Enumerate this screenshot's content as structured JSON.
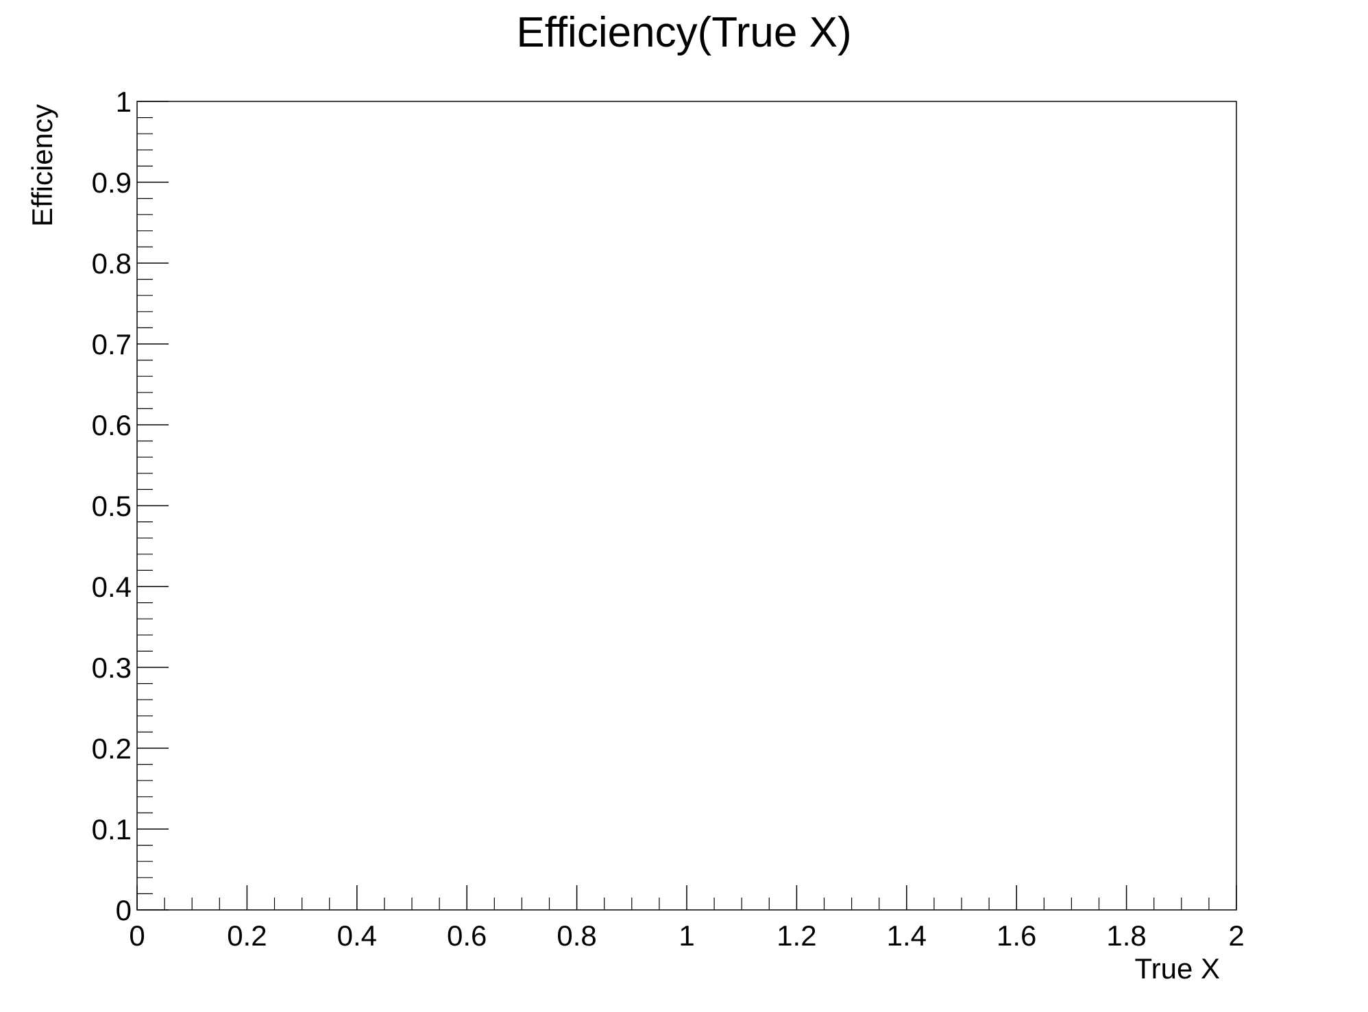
{
  "chart_data": {
    "type": "scatter",
    "title": "Efficiency(True X)",
    "xlabel": "True X",
    "ylabel": "Efficiency",
    "xlim": [
      0,
      2
    ],
    "ylim": [
      0,
      1
    ],
    "x_ticks": [
      0,
      0.2,
      0.4,
      0.6,
      0.8,
      1,
      1.2,
      1.4,
      1.6,
      1.8,
      2
    ],
    "x_tick_labels": [
      "0",
      "0.2",
      "0.4",
      "0.6",
      "0.8",
      "1",
      "1.2",
      "1.4",
      "1.6",
      "1.8",
      "2"
    ],
    "y_ticks": [
      0,
      0.1,
      0.2,
      0.3,
      0.4,
      0.5,
      0.6,
      0.7,
      0.8,
      0.9,
      1
    ],
    "y_tick_labels": [
      "0",
      "0.1",
      "0.2",
      "0.3",
      "0.4",
      "0.5",
      "0.6",
      "0.7",
      "0.8",
      "0.9",
      "1"
    ],
    "x_minor_step": 0.05,
    "y_minor_step": 0.02,
    "grid": false,
    "series": []
  },
  "colors": {
    "axis": "#000000",
    "background": "#ffffff"
  }
}
